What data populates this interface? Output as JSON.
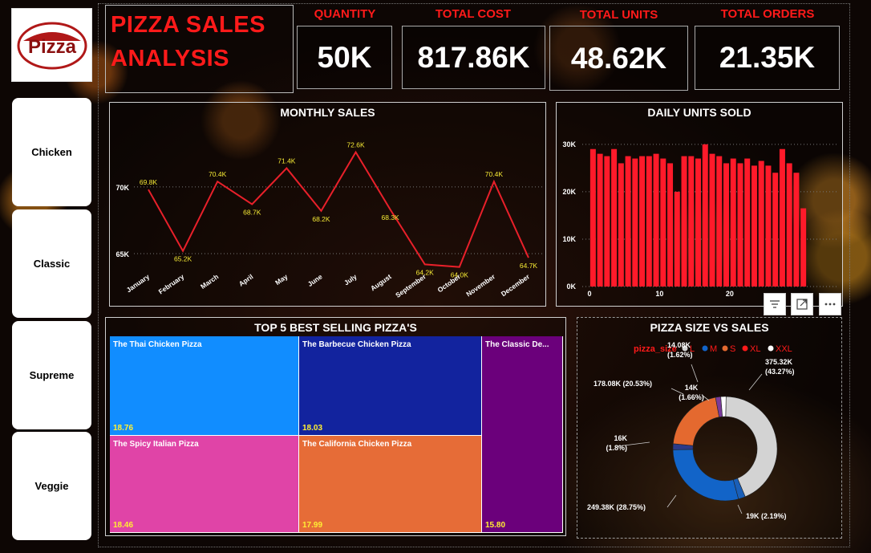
{
  "title": {
    "line1": "PIZZA SALES",
    "line2": "ANALYSIS"
  },
  "logo": {
    "text": "Pizza"
  },
  "slicers": [
    "Chicken",
    "Classic",
    "Supreme",
    "Veggie"
  ],
  "kpis": [
    {
      "label": "QUANTITY",
      "value": "50K"
    },
    {
      "label": "TOTAL COST",
      "value": "817.86K"
    },
    {
      "label": "TOTAL UNITS",
      "value": "48.62K"
    },
    {
      "label": "TOTAL ORDERS",
      "value": "21.35K"
    }
  ],
  "monthly": {
    "title": "MONTHLY SALES"
  },
  "daily": {
    "title": "DAILY UNITS SOLD"
  },
  "treemap": {
    "title": "TOP 5 BEST SELLING PIZZA'S",
    "items": [
      {
        "name": "The Thai Chicken Pizza",
        "value": "18.76",
        "color": "#118dff"
      },
      {
        "name": "The Barbecue Chicken Pizza",
        "value": "18.03",
        "color": "#12239e"
      },
      {
        "name": "The Classic De...",
        "value": "15.80",
        "color": "#6b007b"
      },
      {
        "name": "The Spicy Italian Pizza",
        "value": "18.46",
        "color": "#e044a7"
      },
      {
        "name": "The California Chicken Pizza",
        "value": "17.99",
        "color": "#e66c37"
      }
    ]
  },
  "donut": {
    "title": "PIZZA SIZE VS SALES"
  },
  "colors": {
    "accent": "#ff1a1a",
    "line": "#e8202a",
    "bar": "#ff1a2a"
  },
  "chart_data": [
    {
      "type": "line",
      "title": "MONTHLY SALES",
      "categories": [
        "January",
        "February",
        "March",
        "April",
        "May",
        "June",
        "July",
        "August",
        "September",
        "October",
        "November",
        "December"
      ],
      "values": [
        69.8,
        65.2,
        70.4,
        68.7,
        71.4,
        68.2,
        72.6,
        68.3,
        64.2,
        64.0,
        70.4,
        64.7
      ],
      "labels": [
        "69.8K",
        "65.2K",
        "70.4K",
        "68.7K",
        "71.4K",
        "68.2K",
        "72.6K",
        "68.3K",
        "64.2K",
        "64.0K",
        "70.4K",
        "64.7K"
      ],
      "yticks": [
        "65K",
        "70K"
      ],
      "ytick_values": [
        65,
        70
      ],
      "ylim": [
        63.5,
        74.5
      ]
    },
    {
      "type": "bar",
      "title": "DAILY UNITS SOLD",
      "x": [
        1,
        2,
        3,
        4,
        5,
        6,
        7,
        8,
        9,
        10,
        11,
        12,
        13,
        14,
        15,
        16,
        17,
        18,
        19,
        20,
        21,
        22,
        23,
        24,
        25,
        26,
        27,
        28,
        29,
        30,
        31
      ],
      "values": [
        29,
        28,
        27.5,
        29,
        26,
        27.5,
        27,
        27.5,
        27.5,
        28,
        27,
        26,
        20,
        27.5,
        27.5,
        27,
        30,
        28,
        27.5,
        26,
        27,
        26,
        27,
        25.5,
        26.5,
        25.5,
        24,
        29,
        26,
        24,
        16.5
      ],
      "yticks": [
        "0K",
        "10K",
        "20K",
        "30K"
      ],
      "ytick_values": [
        0,
        10,
        20,
        30
      ],
      "xticks": [
        "0",
        "10",
        "20"
      ],
      "xtick_values": [
        0,
        10,
        20
      ],
      "ylim": [
        0,
        32
      ]
    },
    {
      "type": "pie",
      "title": "PIZZA SIZE VS SALES",
      "legend_title": "pizza_size",
      "legend": [
        {
          "name": "L",
          "color": "#d3d3d3"
        },
        {
          "name": "M",
          "color": "#1264c8"
        },
        {
          "name": "S",
          "color": "#e4692f"
        },
        {
          "name": "XL",
          "color": "#ff1a1a"
        },
        {
          "name": "XXL",
          "color": "#ffffff"
        }
      ],
      "slices": [
        {
          "name": "L",
          "value": 375.32,
          "pct": 43.27,
          "color": "#d3d3d3",
          "label1": "375.32K",
          "label2": "(43.27%)"
        },
        {
          "name": "XL",
          "value": 19,
          "pct": 2.19,
          "color": "#1a5fb8",
          "label1": "19K (2.19%)",
          "label2": ""
        },
        {
          "name": "M",
          "value": 249.38,
          "pct": 28.75,
          "color": "#1264c8",
          "label1": "249.38K (28.75%)",
          "label2": ""
        },
        {
          "name": "",
          "value": 16,
          "pct": 1.8,
          "color": "#2b3a88",
          "label1": "16K",
          "label2": "(1.8%)"
        },
        {
          "name": "S",
          "value": 178.08,
          "pct": 20.53,
          "color": "#e4692f",
          "label1": "178.08K (20.53%)",
          "label2": ""
        },
        {
          "name": "",
          "value": 14.08,
          "pct": 1.62,
          "color": "#7a3b9a",
          "label1": "14.08K",
          "label2": "(1.62%)"
        },
        {
          "name": "XXL",
          "value": 14,
          "pct": 1.66,
          "color": "#ffffff",
          "label1": "14K",
          "label2": "(1.66%)"
        }
      ]
    }
  ]
}
